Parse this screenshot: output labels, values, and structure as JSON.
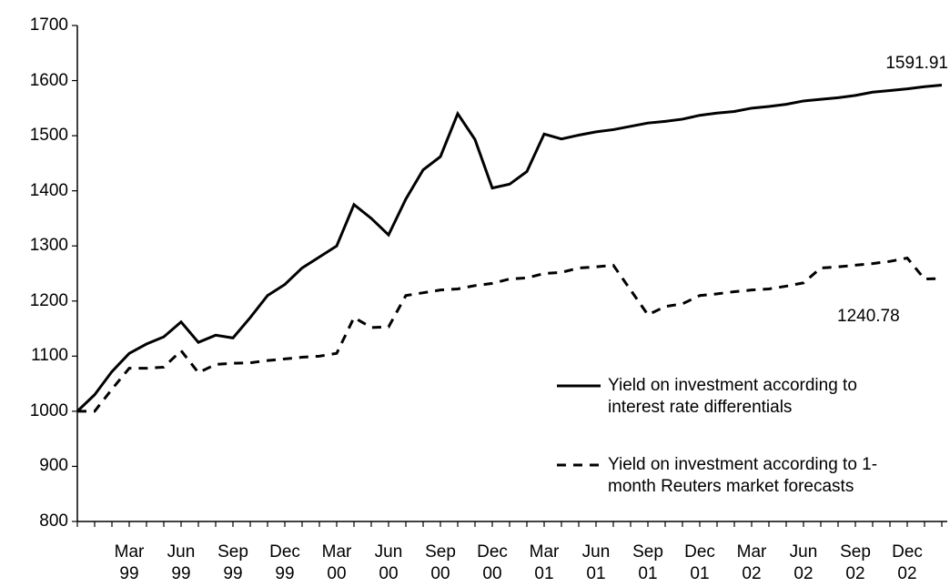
{
  "chart_data": {
    "type": "line",
    "categories": [
      null,
      null,
      null,
      "Mar\n99",
      null,
      null,
      "Jun\n99",
      null,
      null,
      "Sep\n99",
      null,
      null,
      "Dec\n99",
      null,
      null,
      "Mar\n00",
      null,
      null,
      "Jun\n00",
      null,
      null,
      "Sep\n00",
      null,
      null,
      "Dec\n00",
      null,
      null,
      "Mar\n01",
      null,
      null,
      "Jun\n01",
      null,
      null,
      "Sep\n01",
      null,
      null,
      "Dec\n01",
      null,
      null,
      "Mar\n02",
      null,
      null,
      "Jun\n02",
      null,
      null,
      "Sep\n02",
      null,
      null,
      "Dec\n02",
      null,
      null
    ],
    "series": [
      {
        "name": "Yield on investment according to\ninterest rate differentials",
        "color": "#000000",
        "dash": false,
        "values": [
          1000,
          1030,
          1072,
          1105,
          1122,
          1135,
          1162,
          1125,
          1138,
          1133,
          1170,
          1210,
          1230,
          1260,
          1280,
          1300,
          1375,
          1350,
          1320,
          1385,
          1438,
          1462,
          1540,
          1493,
          1405,
          1412,
          1435,
          1503,
          1494,
          1501,
          1507,
          1511,
          1517,
          1523,
          1526,
          1530,
          1537,
          1541,
          1544,
          1550,
          1553,
          1557,
          1563,
          1566,
          1569,
          1573,
          1579,
          1582,
          1585,
          1589,
          1591.91
        ]
      },
      {
        "name": "Yield on investment according to 1-\nmonth Reuters market forecasts",
        "color": "#000000",
        "dash": true,
        "values": [
          1000,
          1000,
          1040,
          1078,
          1078,
          1080,
          1110,
          1070,
          1085,
          1087,
          1088,
          1092,
          1095,
          1098,
          1100,
          1105,
          1170,
          1152,
          1153,
          1210,
          1215,
          1220,
          1222,
          1228,
          1232,
          1240,
          1242,
          1250,
          1252,
          1260,
          1262,
          1265,
          1220,
          1175,
          1190,
          1195,
          1210,
          1213,
          1217,
          1220,
          1222,
          1227,
          1233,
          1260,
          1262,
          1265,
          1268,
          1272,
          1278,
          1240,
          1240.78
        ]
      }
    ],
    "annotations": [
      "1591.91",
      "1240.78"
    ],
    "ylim": [
      800,
      1700
    ],
    "yticks": [
      800,
      900,
      1000,
      1100,
      1200,
      1300,
      1400,
      1500,
      1600,
      1700
    ],
    "grid": false,
    "legend": "lower right"
  }
}
